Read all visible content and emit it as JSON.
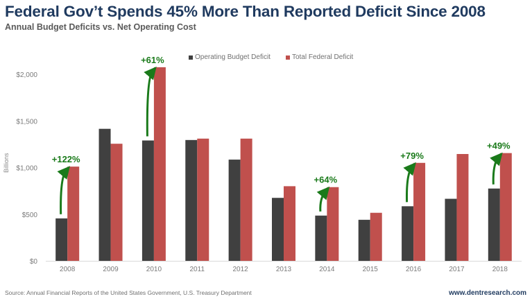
{
  "header": {
    "title": "Federal Gov’t Spends 45% More Than Reported Deficit Since 2008",
    "subtitle": "Annual Budget Deficits  vs. Net  Operating  Cost"
  },
  "footer": {
    "source": "Source: Annual Financial Reports of the United States Government, U.S. Treasury Department",
    "website": "www.dentresearch.com"
  },
  "colors": {
    "operating": "#404040",
    "total": "#c0504d",
    "annotation": "#1a7a1a",
    "title": "#1f3a5f"
  },
  "chart_data": {
    "type": "bar",
    "title": "Federal Gov’t Spends 45% More Than Reported Deficit Since 2008",
    "subtitle": "Annual Budget Deficits vs. Net Operating Cost",
    "xlabel": "",
    "ylabel": "Billions",
    "ylim": [
      0,
      2200
    ],
    "yticks": [
      0,
      500,
      1000,
      1500,
      2000
    ],
    "ytick_labels": [
      "$0",
      "$500",
      "$1,000",
      "$1,500",
      "$2,000"
    ],
    "grid": false,
    "legend_position": "top-center",
    "categories": [
      "2008",
      "2009",
      "2010",
      "2011",
      "2012",
      "2013",
      "2014",
      "2015",
      "2016",
      "2017",
      "2018"
    ],
    "series": [
      {
        "name": "Operating Budget Deficit",
        "color": "#404040",
        "values": [
          455,
          1415,
          1290,
          1295,
          1085,
          675,
          485,
          440,
          585,
          665,
          775
        ]
      },
      {
        "name": "Total Federal Deficit",
        "color": "#c0504d",
        "values": [
          1010,
          1255,
          2075,
          1310,
          1310,
          800,
          790,
          515,
          1050,
          1145,
          1155
        ]
      }
    ],
    "annotations": [
      {
        "category": "2008",
        "text": "+122%"
      },
      {
        "category": "2010",
        "text": "+61%"
      },
      {
        "category": "2014",
        "text": "+64%"
      },
      {
        "category": "2016",
        "text": "+79%"
      },
      {
        "category": "2018",
        "text": "+49%"
      }
    ]
  }
}
